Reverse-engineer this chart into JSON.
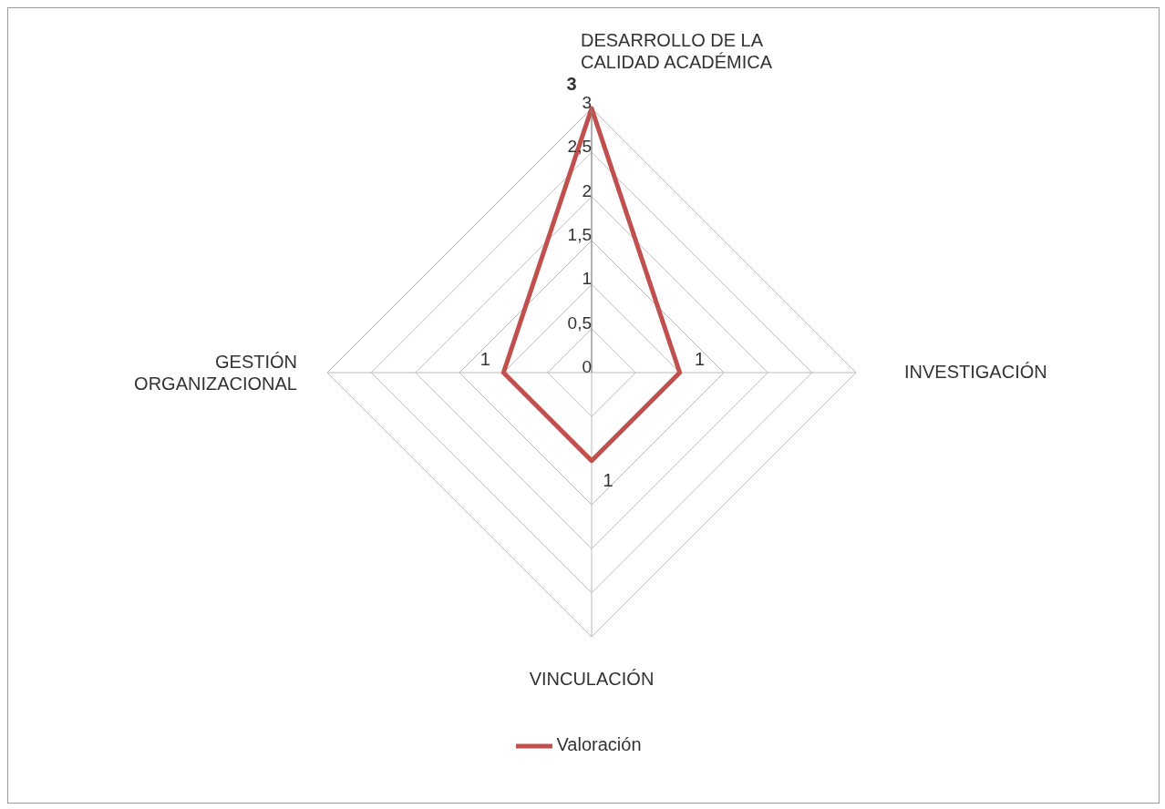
{
  "chart_data": {
    "type": "radar",
    "categories": [
      "DESARROLLO DE LA CALIDAD ACADÉMICA",
      "INVESTIGACIÓN",
      "VINCULACIÓN",
      "GESTIÓN ORGANIZACIONAL"
    ],
    "series": [
      {
        "name": "Valoración",
        "color": "#c0504d",
        "values": [
          3,
          1,
          1,
          1
        ]
      }
    ],
    "ylim": [
      0,
      3
    ],
    "yticks": [
      0,
      {
        "value": 0.5,
        "label": "0,5"
      },
      1,
      {
        "value": 1.5,
        "label": "1,5"
      },
      2,
      {
        "value": 2.5,
        "label": "2,5"
      },
      3
    ],
    "grid": true,
    "legend": "bottom",
    "data_labels": true,
    "marker": "none"
  }
}
